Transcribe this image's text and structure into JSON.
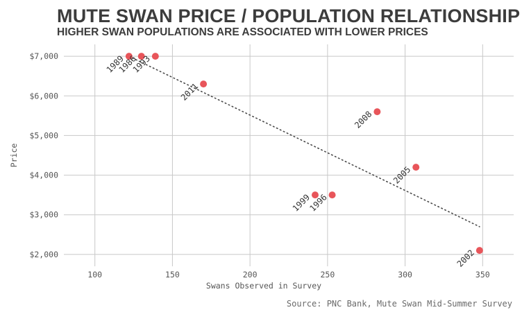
{
  "chart_data": {
    "type": "scatter",
    "title": "MUTE SWAN PRICE / POPULATION RELATIONSHIP",
    "subtitle": "HIGHER SWAN POPULATIONS ARE ASSOCIATED WITH LOWER PRICES",
    "xlabel": "Swans Observed in Survey",
    "ylabel": "Price",
    "xlim": [
      80,
      370
    ],
    "ylim": [
      1700,
      7300
    ],
    "xticks": [
      100,
      150,
      200,
      250,
      300,
      350
    ],
    "xtick_labels": [
      "100",
      "150",
      "200",
      "250",
      "300",
      "350"
    ],
    "yticks": [
      2000,
      3000,
      4000,
      5000,
      6000,
      7000
    ],
    "ytick_labels": [
      "$2,000",
      "$3,000",
      "$4,000",
      "$5,000",
      "$6,000",
      "$7,000"
    ],
    "grid": true,
    "point_color": "#e8555a",
    "trend_color": "#4a4a4a",
    "points": [
      {
        "label": "1989",
        "x": 122,
        "y": 7000
      },
      {
        "label": "1986",
        "x": 130,
        "y": 7000
      },
      {
        "label": "1993",
        "x": 139,
        "y": 7000
      },
      {
        "label": "2011",
        "x": 170,
        "y": 6300
      },
      {
        "label": "2008",
        "x": 282,
        "y": 5600
      },
      {
        "label": "2005",
        "x": 307,
        "y": 4200
      },
      {
        "label": "1999",
        "x": 242,
        "y": 3500
      },
      {
        "label": "1996",
        "x": 253,
        "y": 3500
      },
      {
        "label": "2002",
        "x": 348,
        "y": 2100
      }
    ],
    "trend_line": {
      "x": [
        122,
        348
      ],
      "y": [
        7000,
        2700
      ]
    },
    "source": "Source: PNC Bank, Mute Swan Mid-Summer Survey"
  }
}
